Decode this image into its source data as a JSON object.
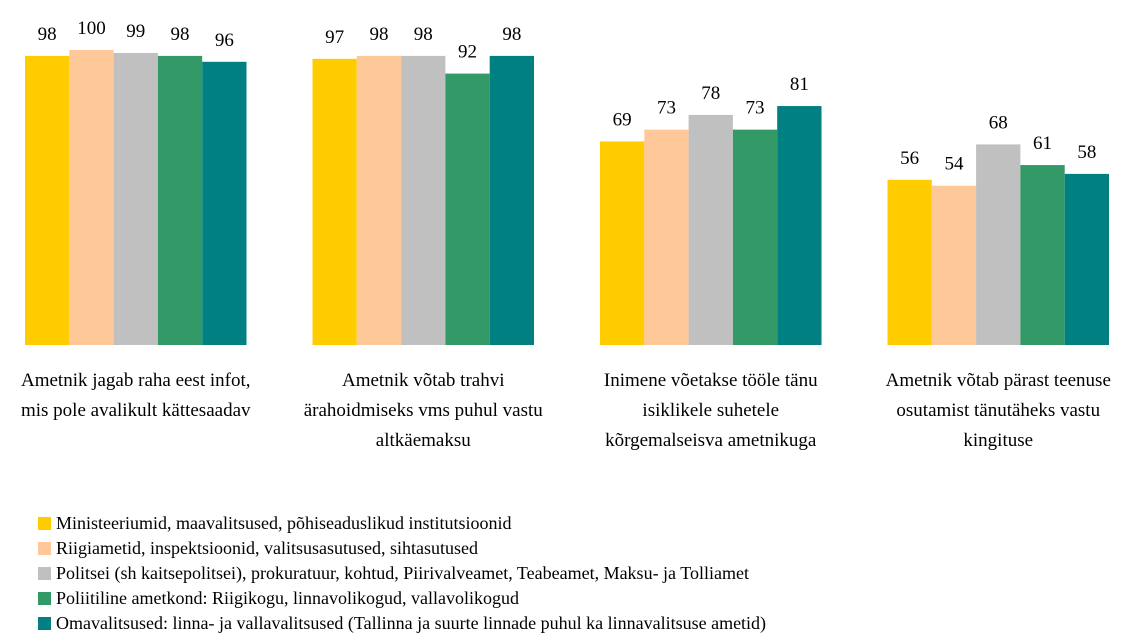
{
  "chart_data": {
    "type": "bar",
    "categories": [
      "Ametnik jagab raha eest infot, mis pole avalikult kättesaadav",
      "Ametnik võtab trahvi ärahoidmiseks vms puhul vastu altkäemaksu",
      "Inimene võetakse tööle tänu isiklikele suhetele kõrgemalseisva ametnikuga",
      "Ametnik võtab pärast teenuse osutamist tänutäheks vastu kingituse"
    ],
    "series": [
      {
        "name": "Ministeeriumid, maavalitsused, põhiseaduslikud institutsioonid",
        "color": "#ffcc00",
        "values": [
          98,
          97,
          69,
          56
        ]
      },
      {
        "name": "Riigiametid, inspektsioonid, valitsusasutused, sihtasutused",
        "color": "#ffc899",
        "values": [
          100,
          98,
          73,
          54
        ]
      },
      {
        "name": "Politsei (sh kaitsepolitsei), prokuratuur, kohtud, Piirivalveamet, Teabeamet, Maksu- ja Tolliamet",
        "color": "#c0c0c0",
        "values": [
          99,
          98,
          78,
          68
        ]
      },
      {
        "name": "Poliitiline ametkond: Riigikogu, linnavolikogud, vallavolikogud",
        "color": "#339966",
        "values": [
          98,
          92,
          73,
          61
        ]
      },
      {
        "name": "Omavalitsused: linna- ja vallavalitsused (Tallinna ja suurte linnade puhul ka linnavalitsuse ametid)",
        "color": "#008080",
        "values": [
          96,
          98,
          81,
          58
        ]
      }
    ],
    "ylim": [
      0,
      100
    ]
  }
}
